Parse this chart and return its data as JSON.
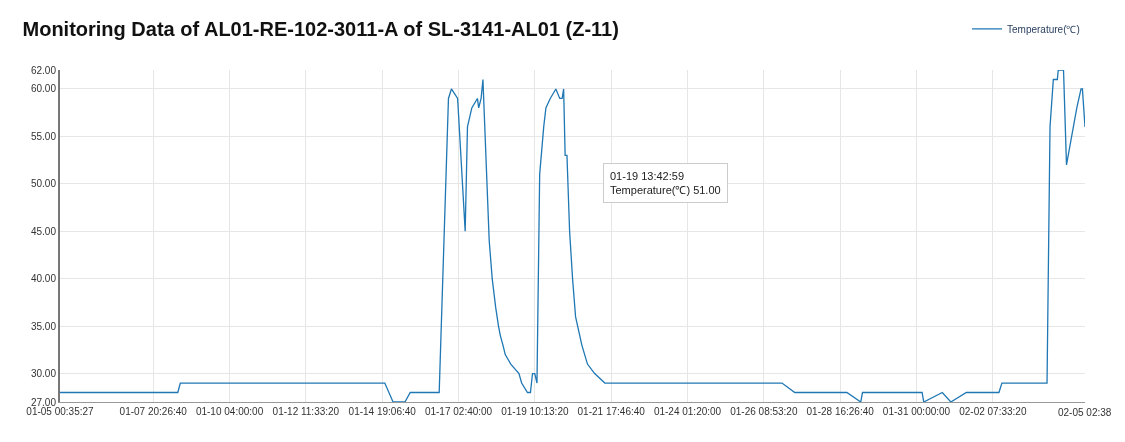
{
  "chart_data": {
    "type": "line",
    "title": "Monitoring Data of AL01-RE-102-3011-A of SL-3141-AL01 (Z-11)",
    "x": [
      "--01-05T00:35:27",
      "--01-08T14:20",
      "--01-08T16:10",
      "--01-14T21:00",
      "--01-15T03:00",
      "--01-15T11:40",
      "--01-15T15:30",
      "--01-16T12:35",
      "--01-16T19:20",
      "--01-16T21:30",
      "--01-17T02:00",
      "--01-17T07:30",
      "--01-17T09:10",
      "--01-17T12:20",
      "--01-17T16:25",
      "--01-17T17:20",
      "--01-17T19:05",
      "--01-17T20:25",
      "--01-18T01:00",
      "--01-18T03:10",
      "--01-18T05:40",
      "--01-18T07:45",
      "--01-18T09:05",
      "--01-18T11:00",
      "--01-18T12:40",
      "--01-18T16:40",
      "--01-18T22:40",
      "--01-19T00:35",
      "--01-19T04:50",
      "--01-19T07:00",
      "--01-19T08:30",
      "--01-19T10:10",
      "--01-19T11:45",
      "--01-19T13:42:59",
      "--01-19T16:40",
      "--01-19T18:15",
      "--01-19T21:25",
      "--01-20T01:30",
      "--01-20T04:20",
      "--01-20T06:05",
      "--01-20T07:10",
      "--01-20T08:15",
      "--01-20T09:35",
      "--01-20T11:30",
      "--01-20T13:40",
      "--01-20T15:50",
      "--01-20T20:25",
      "--01-21T00:30",
      "--01-21T05:45",
      "--01-21T13:10",
      "--01-26T22:05",
      "--01-27T07:25",
      "--01-28T21:20",
      "--01-29T07:25",
      "--01-29T08:40",
      "--01-31T04:05",
      "--01-31T05:15",
      "--01-31T18:45",
      "--02-01T01:00",
      "--02-01T12:15",
      "--02-02T12:00",
      "--02-02T14:10",
      "--02-03T23:00",
      "--02-04T01:10",
      "--02-04T03:35",
      "--02-04T06:30",
      "--02-04T07:10",
      "--02-04T11:00",
      "--02-04T13:10",
      "--02-04T20:40",
      "--02-04T23:45",
      "--02-05T00:45",
      "--02-05T02:38"
    ],
    "series": [
      {
        "name": "Temperature(℃)",
        "color": "#1f77b4",
        "values": [
          28,
          28,
          29,
          29,
          27,
          27,
          28,
          28,
          59,
          60,
          59,
          45,
          56,
          58,
          59,
          58,
          59,
          61,
          44,
          40,
          37,
          35,
          34,
          33,
          32,
          31,
          30,
          29,
          28,
          28,
          30,
          30,
          29,
          51,
          56,
          58,
          59,
          60,
          59,
          59,
          60,
          53,
          53,
          45,
          40,
          36,
          33,
          31,
          30,
          29,
          29,
          28,
          28,
          27,
          28,
          28,
          27,
          28,
          27,
          28,
          28,
          29,
          29,
          56,
          61,
          61,
          62,
          62,
          52,
          58,
          60,
          60,
          56
        ]
      }
    ],
    "xlim": [
      "--01-05T00:35:27",
      "--02-05T02:38"
    ],
    "xticks": [
      {
        "value": "--01-05T00:35:27",
        "label": "01-05 00:35:27"
      },
      {
        "value": "--01-07T20:26:40",
        "label": "01-07 20:26:40"
      },
      {
        "value": "--01-10T04:00:00",
        "label": "01-10 04:00:00"
      },
      {
        "value": "--01-12T11:33:20",
        "label": "01-12 11:33:20"
      },
      {
        "value": "--01-14T19:06:40",
        "label": "01-14 19:06:40"
      },
      {
        "value": "--01-17T02:40:00",
        "label": "01-17 02:40:00"
      },
      {
        "value": "--01-19T10:13:20",
        "label": "01-19 10:13:20"
      },
      {
        "value": "--01-21T17:46:40",
        "label": "01-21 17:46:40"
      },
      {
        "value": "--01-24T01:20:00",
        "label": "01-24 01:20:00"
      },
      {
        "value": "--01-26T08:53:20",
        "label": "01-26 08:53:20"
      },
      {
        "value": "--01-28T16:26:40",
        "label": "01-28 16:26:40"
      },
      {
        "value": "--01-31T00:00:00",
        "label": "01-31 00:00:00"
      },
      {
        "value": "--02-02T07:33:20",
        "label": "02-02 07:33:20"
      },
      {
        "value": "--02-05T02:38",
        "label": "02-05 02:38"
      }
    ],
    "ylim": [
      27,
      62
    ],
    "yticks": [
      {
        "value": 27,
        "label": "27.00"
      },
      {
        "value": 30,
        "label": "30.00"
      },
      {
        "value": 35,
        "label": "35.00"
      },
      {
        "value": 40,
        "label": "40.00"
      },
      {
        "value": 45,
        "label": "45.00"
      },
      {
        "value": 50,
        "label": "50.00"
      },
      {
        "value": 55,
        "label": "55.00"
      },
      {
        "value": 60,
        "label": "60.00"
      },
      {
        "value": 62,
        "label": "62.00"
      }
    ],
    "annotations": [
      "01-19 13:42:59\nTemperature(℃) 51.00"
    ],
    "grid": true,
    "legend": "top right",
    "marker": "none",
    "line_style": "solid"
  }
}
